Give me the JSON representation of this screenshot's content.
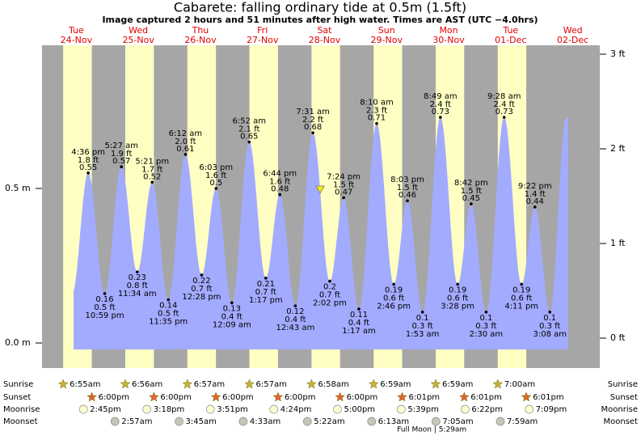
{
  "chart_data": {
    "type": "tide",
    "title": "Cabarete: falling  ordinary tide at 0.5m (1.5ft)",
    "subtitle": "Image captured 2 hours and 51 minutes after high water. Times are AST (UTC −4.0hrs)",
    "color": "#a3abff",
    "ylim": [
      -0.081,
      0.963
    ],
    "yticks": [
      {
        "value": 0,
        "label": "0.0 m"
      },
      {
        "value": 0.5,
        "label": "0.5 m"
      }
    ],
    "y2lim": [
      -0.316,
      3.094
    ],
    "y2ticks": [
      {
        "value": 0,
        "label": "0 ft"
      },
      {
        "value": 1,
        "label": "1 ft"
      },
      {
        "value": 2,
        "label": "2 ft"
      },
      {
        "value": 3,
        "label": "3 ft"
      }
    ],
    "row_labels": {
      "sunrise": "Sunrise",
      "sunset": "Sunset",
      "moonrise": "Moonrise",
      "moonset": "Moonset"
    },
    "days": [
      {
        "weekday": "Tue",
        "date": "24-Nov",
        "sunrise": "6:55am",
        "sunset": "6:00pm",
        "moonrise": "2:45pm",
        "tides": [
          {
            "time": "4:36 pm",
            "height_ft": "1.8 ft",
            "height_m": 0.55
          },
          {
            "time": "10:59 pm",
            "height_ft": "0.5 ft",
            "height_m": 0.16
          }
        ]
      },
      {
        "weekday": "Wed",
        "date": "25-Nov",
        "sunrise": "6:56am",
        "sunset": "6:00pm",
        "moonrise": "3:18pm",
        "moonset": "2:57am",
        "tides": [
          {
            "time": "5:27 am",
            "height_ft": "1.9 ft",
            "height_m": 0.57
          },
          {
            "time": "11:34 am",
            "height_ft": "0.8 ft",
            "height_m": 0.23
          },
          {
            "time": "5:21 pm",
            "height_ft": "1.7 ft",
            "height_m": 0.52
          },
          {
            "time": "11:35 pm",
            "height_ft": "0.5 ft",
            "height_m": 0.14
          }
        ]
      },
      {
        "weekday": "Thu",
        "date": "26-Nov",
        "sunrise": "6:57am",
        "sunset": "6:00pm",
        "moonrise": "3:51pm",
        "moonset": "3:45am",
        "tides": [
          {
            "time": "6:12 am",
            "height_ft": "2.0 ft",
            "height_m": 0.61
          },
          {
            "time": "12:28 pm",
            "height_ft": "0.7 ft",
            "height_m": 0.22
          },
          {
            "time": "6:03 pm",
            "height_ft": "1.6 ft",
            "height_m": 0.5
          }
        ]
      },
      {
        "weekday": "Fri",
        "date": "27-Nov",
        "sunrise": "6:57am",
        "sunset": "6:00pm",
        "moonrise": "4:24pm",
        "moonset": "4:33am",
        "tides": [
          {
            "time": "12:09 am",
            "height_ft": "0.4 ft",
            "height_m": 0.13
          },
          {
            "time": "6:52 am",
            "height_ft": "2.1 ft",
            "height_m": 0.65
          },
          {
            "time": "1:17 pm",
            "height_ft": "0.7 ft",
            "height_m": 0.21
          },
          {
            "time": "6:44 pm",
            "height_ft": "1.6 ft",
            "height_m": 0.48
          }
        ]
      },
      {
        "weekday": "Sat",
        "date": "28-Nov",
        "sunrise": "6:58am",
        "sunset": "6:00pm",
        "moonrise": "5:00pm",
        "moonset": "5:22am",
        "tides": [
          {
            "time": "12:43 am",
            "height_ft": "0.4 ft",
            "height_m": 0.12
          },
          {
            "time": "7:31 am",
            "height_ft": "2.2 ft",
            "height_m": 0.68
          },
          {
            "time": "2:02 pm",
            "height_ft": "0.7 ft",
            "height_m": 0.2
          },
          {
            "time": "7:24 pm",
            "height_ft": "1.5 ft",
            "height_m": 0.47
          }
        ]
      },
      {
        "weekday": "Sun",
        "date": "29-Nov",
        "sunrise": "6:59am",
        "sunset": "6:01pm",
        "moonrise": "5:39pm",
        "moonset": "6:13am",
        "tides": [
          {
            "time": "1:17 am",
            "height_ft": "0.4 ft",
            "height_m": 0.11
          },
          {
            "time": "8:10 am",
            "height_ft": "2.3 ft",
            "height_m": 0.71
          },
          {
            "time": "2:46 pm",
            "height_ft": "0.6 ft",
            "height_m": 0.19
          },
          {
            "time": "8:03 pm",
            "height_ft": "1.5 ft",
            "height_m": 0.46
          }
        ]
      },
      {
        "weekday": "Mon",
        "date": "30-Nov",
        "sunrise": "6:59am",
        "sunset": "6:01pm",
        "moonrise": "6:22pm",
        "moonset": "7:05am",
        "moon_phase": "Full Moon | 5:29am",
        "tides": [
          {
            "time": "1:53 am",
            "height_ft": "0.3 ft",
            "height_m": 0.1
          },
          {
            "time": "8:49 am",
            "height_ft": "2.4 ft",
            "height_m": 0.73
          },
          {
            "time": "3:28 pm",
            "height_ft": "0.6 ft",
            "height_m": 0.19
          },
          {
            "time": "8:42 pm",
            "height_ft": "1.5 ft",
            "height_m": 0.45
          }
        ]
      },
      {
        "weekday": "Tue",
        "date": "01-Dec",
        "sunrise": "7:00am",
        "sunset": "6:01pm",
        "moonrise": "7:09pm",
        "moonset": "7:59am",
        "tides": [
          {
            "time": "2:30 am",
            "height_ft": "0.3 ft",
            "height_m": 0.1
          },
          {
            "time": "9:28 am",
            "height_ft": "2.4 ft",
            "height_m": 0.73
          },
          {
            "time": "4:11 pm",
            "height_ft": "0.6 ft",
            "height_m": 0.19
          },
          {
            "time": "9:22 pm",
            "height_ft": "1.4 ft",
            "height_m": 0.44
          }
        ]
      },
      {
        "weekday": "Wed",
        "date": "02-Dec",
        "tides": [
          {
            "time": "3:08 am",
            "height_ft": "0.3 ft",
            "height_m": 0.1
          }
        ]
      }
    ]
  }
}
